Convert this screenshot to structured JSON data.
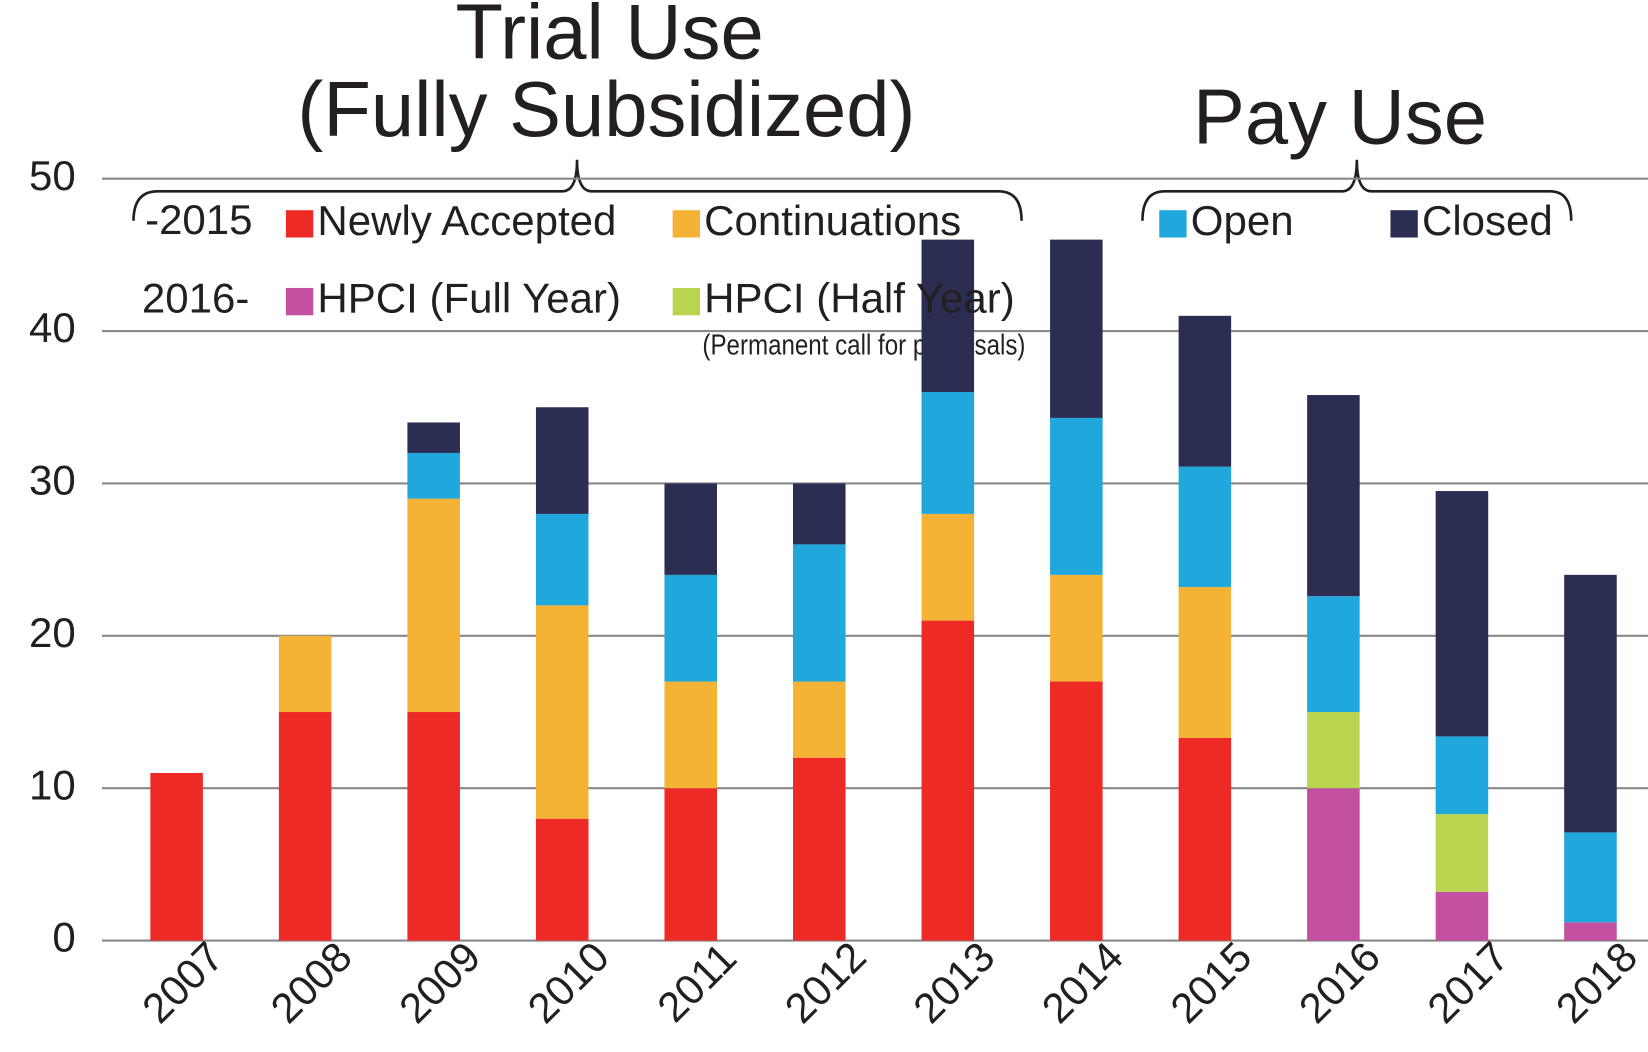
{
  "chart_data": {
    "type": "stacked_bar",
    "annotations": [
      "Trial Use",
      "(Fully Subsidized)",
      "Pay Use",
      "-2015",
      "2016-",
      "(Permanent call for proposals)"
    ],
    "categories": [
      "2007",
      "2008",
      "2009",
      "2010",
      "2011",
      "2012",
      "2013",
      "2014",
      "2015",
      "2016",
      "2017",
      "2018"
    ],
    "series": [
      {
        "name": "Newly Accepted",
        "color": "#ee2a27",
        "values": [
          11,
          15,
          15,
          8,
          10,
          12,
          21,
          17,
          13.3,
          null,
          null,
          null
        ]
      },
      {
        "name": "Continuations",
        "color": "#f5b335",
        "values": [
          null,
          5,
          14,
          14,
          7,
          5,
          7,
          7,
          9.9,
          null,
          null,
          null
        ]
      },
      {
        "name": "HPCI (Full Year)",
        "color": "#c24fa0",
        "values": [
          null,
          null,
          null,
          null,
          null,
          null,
          null,
          null,
          null,
          10,
          3.2,
          1.2
        ]
      },
      {
        "name": "HPCI (Half Year)",
        "color": "#b9d44f",
        "values": [
          null,
          null,
          null,
          null,
          null,
          null,
          null,
          null,
          null,
          5,
          5.1,
          null
        ]
      },
      {
        "name": "Open",
        "color": "#20a8dc",
        "values": [
          null,
          null,
          3,
          6,
          7,
          9,
          8,
          10.3,
          7.9,
          7.6,
          5.1,
          5.9
        ]
      },
      {
        "name": "Closed",
        "color": "#2b2e52",
        "values": [
          null,
          null,
          2,
          7,
          6,
          4,
          10,
          11.7,
          9.9,
          13.2,
          16.1,
          16.9
        ]
      }
    ],
    "ylim": [
      0,
      50
    ],
    "yticks": [
      0,
      10,
      20,
      30,
      40,
      50
    ],
    "grid": true
  }
}
